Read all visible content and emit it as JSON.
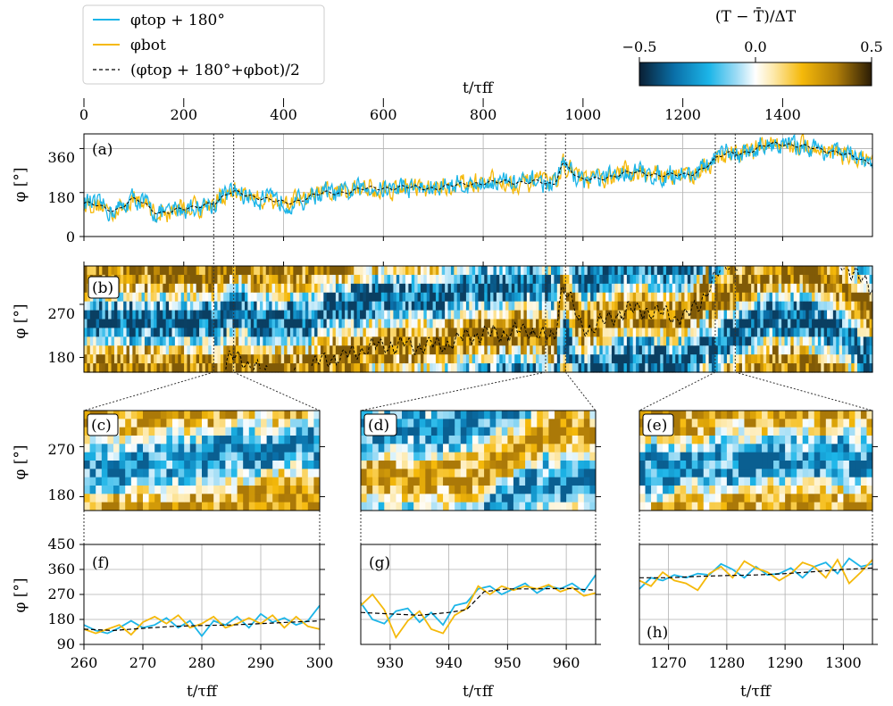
{
  "colors": {
    "top": "#1cb5e8",
    "bot": "#f5b90a",
    "mean": "#000000",
    "cmap": [
      "#0a1f33",
      "#0a6fa8",
      "#1cb5e8",
      "#9fdcf5",
      "#ffffff",
      "#fde8a8",
      "#f5b90a",
      "#b07d08",
      "#2a1c06"
    ]
  },
  "legend": {
    "items": [
      {
        "key": "top",
        "label": "φtop + 180°"
      },
      {
        "key": "bot",
        "label": "φbot"
      },
      {
        "key": "mean",
        "label": "(φtop + 180°+φbot)/2"
      }
    ]
  },
  "colorbar": {
    "title": "(T − T̄)/ΔT",
    "ticks": [
      "−0.5",
      "0.0",
      "0.5"
    ],
    "range": [
      -0.5,
      0.5
    ]
  },
  "top_axis": {
    "label": "t/τff",
    "ticks": [
      "0",
      "200",
      "400",
      "600",
      "800",
      "1000",
      "1200",
      "1400"
    ]
  },
  "ylabel": "φ [°]",
  "xlabel_bottom": "t/τff",
  "panels": {
    "a": {
      "label": "(a)",
      "yticks": [
        "0",
        "180",
        "360"
      ]
    },
    "b": {
      "label": "(b)",
      "yticks": [
        "180",
        "270"
      ]
    },
    "c": {
      "label": "(c)",
      "yticks": [
        "180",
        "270"
      ]
    },
    "d": {
      "label": "(d)"
    },
    "e": {
      "label": "(e)"
    },
    "f": {
      "label": "(f)",
      "yticks": [
        "90",
        "180",
        "270",
        "360",
        "450"
      ],
      "xticks": [
        "260",
        "270",
        "280",
        "290",
        "300"
      ]
    },
    "g": {
      "label": "(g)",
      "xticks": [
        "930",
        "940",
        "950",
        "960"
      ]
    },
    "h": {
      "label": "(h)",
      "xticks": [
        "1270",
        "1280",
        "1290",
        "1300"
      ]
    }
  },
  "chart_data": [
    {
      "panel": "a",
      "type": "line",
      "xlim": [
        0,
        1580
      ],
      "ylim": [
        0,
        420
      ],
      "grid": true,
      "mean_anchors": {
        "t": [
          0,
          60,
          100,
          150,
          200,
          260,
          300,
          400,
          500,
          600,
          700,
          800,
          900,
          940,
          960,
          1000,
          1100,
          1200,
          1300,
          1400,
          1500,
          1580
        ],
        "phi": [
          135,
          110,
          150,
          100,
          110,
          140,
          180,
          140,
          180,
          200,
          200,
          220,
          225,
          210,
          300,
          230,
          260,
          250,
          340,
          380,
          350,
          300
        ]
      },
      "series": [
        {
          "name": "φtop + 180°",
          "color_key": "top"
        },
        {
          "name": "φbot",
          "color_key": "bot"
        },
        {
          "name": "(φtop + 180°+φbot)/2",
          "color_key": "mean"
        }
      ]
    },
    {
      "panel": "b",
      "type": "heatmap",
      "xlim": [
        0,
        1580
      ],
      "ylim": [
        155,
        335
      ],
      "overlay": "(φtop + 180°+φbot)/2"
    },
    {
      "panel": "c",
      "type": "heatmap",
      "xlim": [
        260,
        300
      ],
      "ylim": [
        155,
        335
      ]
    },
    {
      "panel": "d",
      "type": "heatmap",
      "xlim": [
        925,
        965
      ],
      "ylim": [
        155,
        335
      ]
    },
    {
      "panel": "e",
      "type": "heatmap",
      "xlim": [
        1265,
        1305
      ],
      "ylim": [
        155,
        335
      ]
    },
    {
      "panel": "f",
      "type": "line",
      "xlim": [
        260,
        300
      ],
      "ylim": [
        90,
        450
      ],
      "grid": true,
      "series": [
        {
          "name": "φtop + 180°",
          "color_key": "top",
          "x": [
            260,
            262,
            264,
            266,
            268,
            270,
            272,
            274,
            276,
            278,
            280,
            282,
            284,
            286,
            288,
            290,
            292,
            294,
            296,
            298,
            300
          ],
          "y": [
            160,
            140,
            130,
            150,
            175,
            150,
            160,
            185,
            150,
            175,
            120,
            175,
            160,
            190,
            150,
            200,
            170,
            185,
            160,
            175,
            230
          ]
        },
        {
          "name": "φbot",
          "color_key": "bot",
          "x": [
            260,
            262,
            264,
            266,
            268,
            270,
            272,
            274,
            276,
            278,
            280,
            282,
            284,
            286,
            288,
            290,
            292,
            294,
            296,
            298,
            300
          ],
          "y": [
            145,
            130,
            145,
            160,
            125,
            170,
            190,
            165,
            195,
            150,
            165,
            190,
            150,
            165,
            185,
            165,
            195,
            150,
            190,
            155,
            145
          ]
        },
        {
          "name": "(φtop + 180°+φbot)/2",
          "color_key": "mean",
          "x": [
            260,
            265,
            270,
            275,
            280,
            285,
            290,
            295,
            300
          ],
          "y": [
            145,
            140,
            148,
            155,
            158,
            160,
            165,
            170,
            175
          ]
        }
      ]
    },
    {
      "panel": "g",
      "type": "line",
      "xlim": [
        925,
        965
      ],
      "ylim": [
        90,
        450
      ],
      "grid": true,
      "series": [
        {
          "name": "φtop + 180°",
          "color_key": "top",
          "x": [
            925,
            927,
            929,
            931,
            933,
            935,
            937,
            939,
            941,
            943,
            945,
            947,
            949,
            951,
            953,
            955,
            957,
            959,
            961,
            963,
            965
          ],
          "y": [
            240,
            180,
            165,
            210,
            220,
            170,
            205,
            160,
            230,
            240,
            290,
            300,
            270,
            290,
            310,
            275,
            300,
            290,
            310,
            280,
            340
          ]
        },
        {
          "name": "φbot",
          "color_key": "bot",
          "x": [
            925,
            927,
            929,
            931,
            933,
            935,
            937,
            939,
            941,
            943,
            945,
            947,
            949,
            951,
            953,
            955,
            957,
            959,
            961,
            963,
            965
          ],
          "y": [
            230,
            270,
            215,
            115,
            175,
            210,
            145,
            130,
            195,
            220,
            300,
            270,
            300,
            285,
            300,
            290,
            305,
            280,
            295,
            265,
            275
          ]
        },
        {
          "name": "(φtop + 180°+φbot)/2",
          "color_key": "mean",
          "x": [
            925,
            930,
            935,
            940,
            943,
            946,
            950,
            955,
            960,
            965
          ],
          "y": [
            205,
            200,
            195,
            205,
            215,
            280,
            290,
            290,
            292,
            285
          ]
        }
      ]
    },
    {
      "panel": "h",
      "type": "line",
      "xlim": [
        1265,
        1305
      ],
      "ylim": [
        90,
        450
      ],
      "grid": true,
      "series": [
        {
          "name": "φtop + 180°",
          "color_key": "top",
          "x": [
            1265,
            1267,
            1269,
            1271,
            1273,
            1275,
            1277,
            1279,
            1281,
            1283,
            1285,
            1287,
            1289,
            1291,
            1293,
            1295,
            1297,
            1299,
            1301,
            1303,
            1305
          ],
          "y": [
            290,
            330,
            320,
            340,
            330,
            345,
            340,
            380,
            360,
            330,
            370,
            340,
            345,
            365,
            330,
            370,
            385,
            345,
            400,
            370,
            380
          ]
        },
        {
          "name": "φbot",
          "color_key": "bot",
          "x": [
            1265,
            1267,
            1269,
            1271,
            1273,
            1275,
            1277,
            1279,
            1281,
            1283,
            1285,
            1287,
            1289,
            1291,
            1293,
            1295,
            1297,
            1299,
            1301,
            1303,
            1305
          ],
          "y": [
            320,
            300,
            350,
            320,
            310,
            285,
            345,
            370,
            330,
            390,
            365,
            350,
            320,
            345,
            385,
            370,
            330,
            395,
            310,
            350,
            395
          ]
        },
        {
          "name": "(φtop + 180°+φbot)/2",
          "color_key": "mean",
          "x": [
            1265,
            1270,
            1275,
            1280,
            1285,
            1290,
            1295,
            1300,
            1305
          ],
          "y": [
            330,
            330,
            335,
            338,
            340,
            345,
            352,
            360,
            365
          ]
        }
      ]
    }
  ]
}
